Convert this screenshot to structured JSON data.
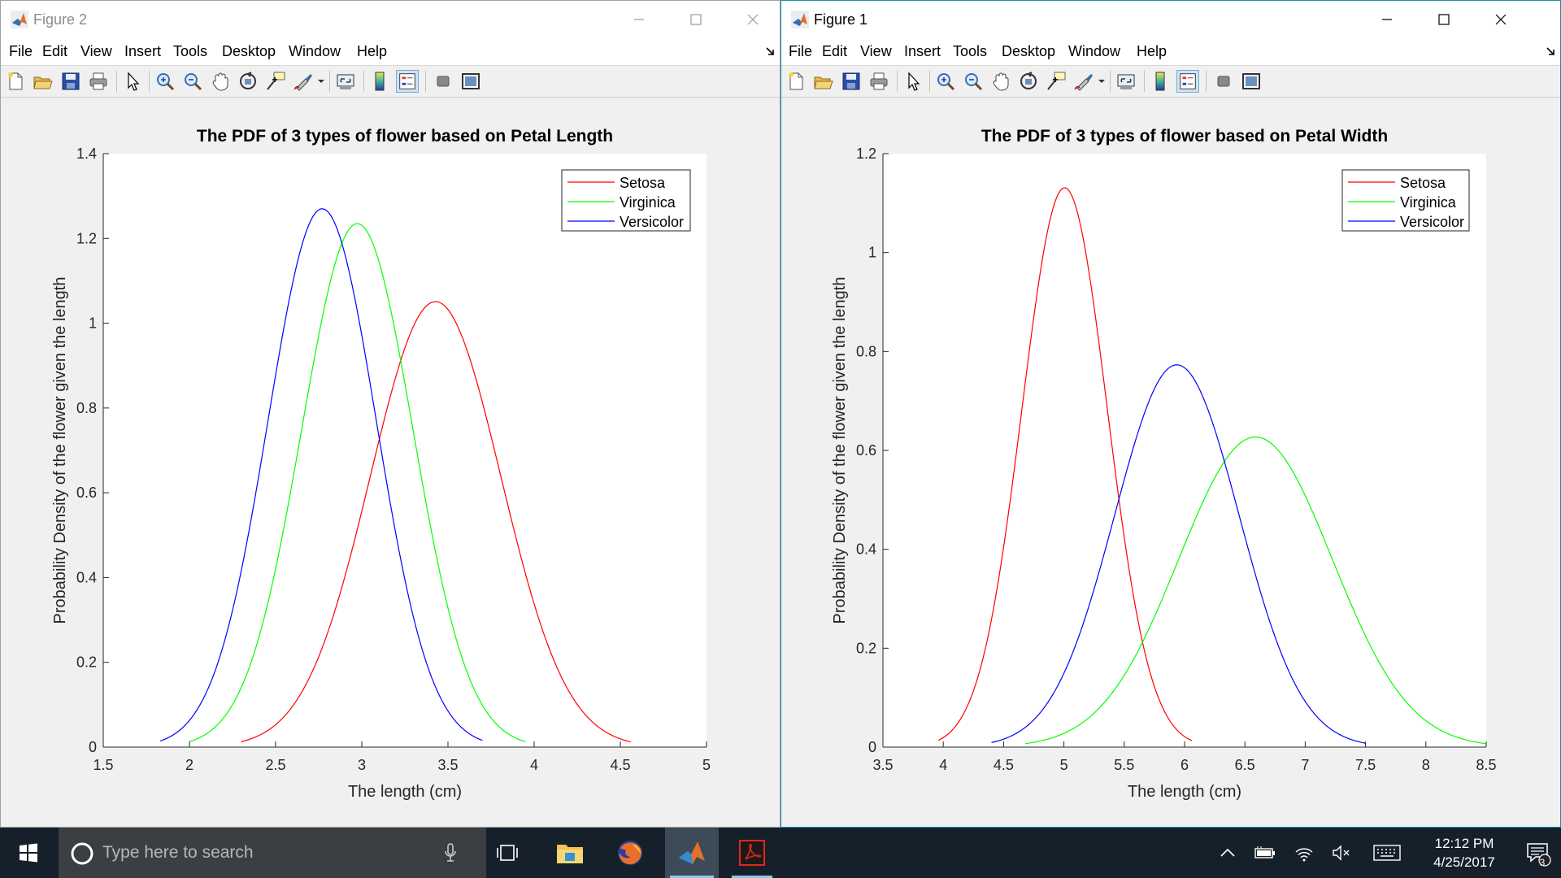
{
  "windows": [
    {
      "id": "left",
      "title": "Figure 2",
      "menu": [
        "File",
        "Edit",
        "View",
        "Insert",
        "Tools",
        "Desktop",
        "Window",
        "Help"
      ],
      "plot": {
        "title": "The PDF of 3 types of flower based on Petal Length",
        "xlabel": "The length (cm)",
        "ylabel": "Probability Density of the flower given the length"
      }
    },
    {
      "id": "right",
      "title": "Figure 1",
      "menu": [
        "File",
        "Edit",
        "View",
        "Insert",
        "Tools",
        "Desktop",
        "Window",
        "Help"
      ],
      "plot": {
        "title": "The PDF of 3 types of flower based on Petal Width",
        "xlabel": "The length (cm)",
        "ylabel": "Probability Density of the flower given the length"
      }
    }
  ],
  "toolbar_icons": [
    "new-figure-icon",
    "open-file-icon",
    "save-icon",
    "print-icon",
    "edit-plot-icon",
    "zoom-in-icon",
    "zoom-out-icon",
    "pan-icon",
    "rotate-3d-icon",
    "data-cursor-icon",
    "brush-icon",
    "link-plot-icon",
    "insert-colorbar-icon",
    "insert-legend-icon",
    "hide-plot-tools-icon",
    "show-plot-tools-icon"
  ],
  "chart_data": [
    {
      "type": "line",
      "title": "The PDF of 3 types of flower based on Petal Length",
      "xlabel": "The length (cm)",
      "ylabel": "Probability Density of the flower given the length",
      "xlim": [
        1.5,
        5
      ],
      "ylim": [
        0,
        1.4
      ],
      "xticks": [
        1.5,
        2,
        2.5,
        3,
        3.5,
        4,
        4.5,
        5
      ],
      "yticks": [
        0,
        0.2,
        0.4,
        0.6,
        0.8,
        1,
        1.2,
        1.4
      ],
      "grid": false,
      "legend_position": "top-right",
      "series": [
        {
          "name": "Setosa",
          "color": "#ff0000",
          "x_range": [
            2.3,
            4.56
          ],
          "mean": 3.428,
          "peak": 1.051
        },
        {
          "name": "Virginica",
          "color": "#00ff00",
          "x_range": [
            2.0,
            3.95
          ],
          "mean": 2.974,
          "peak": 1.235
        },
        {
          "name": "Versicolor",
          "color": "#0000ff",
          "x_range": [
            1.83,
            3.7
          ],
          "mean": 2.77,
          "peak": 1.27
        }
      ]
    },
    {
      "type": "line",
      "title": "The PDF of 3 types of flower based on Petal Width",
      "xlabel": "The length (cm)",
      "ylabel": "Probability Density of the flower given the length",
      "xlim": [
        3.5,
        8.5
      ],
      "ylim": [
        0,
        1.2
      ],
      "xticks": [
        3.5,
        4,
        4.5,
        5,
        5.5,
        6,
        6.5,
        7,
        7.5,
        8,
        8.5
      ],
      "yticks": [
        0,
        0.2,
        0.4,
        0.6,
        0.8,
        1,
        1.2
      ],
      "grid": false,
      "legend_position": "top-right",
      "series": [
        {
          "name": "Setosa",
          "color": "#ff0000",
          "x_range": [
            3.96,
            6.06
          ],
          "mean": 5.006,
          "peak": 1.131
        },
        {
          "name": "Virginica",
          "color": "#00ff00",
          "x_range": [
            4.68,
            8.5
          ],
          "mean": 6.588,
          "peak": 0.627
        },
        {
          "name": "Versicolor",
          "color": "#0000ff",
          "x_range": [
            4.4,
            7.5
          ],
          "mean": 5.936,
          "peak": 0.773
        }
      ]
    }
  ],
  "taskbar": {
    "search_placeholder": "Type here to search",
    "time": "12:12 PM",
    "date": "4/25/2017",
    "notification_count": "3"
  }
}
